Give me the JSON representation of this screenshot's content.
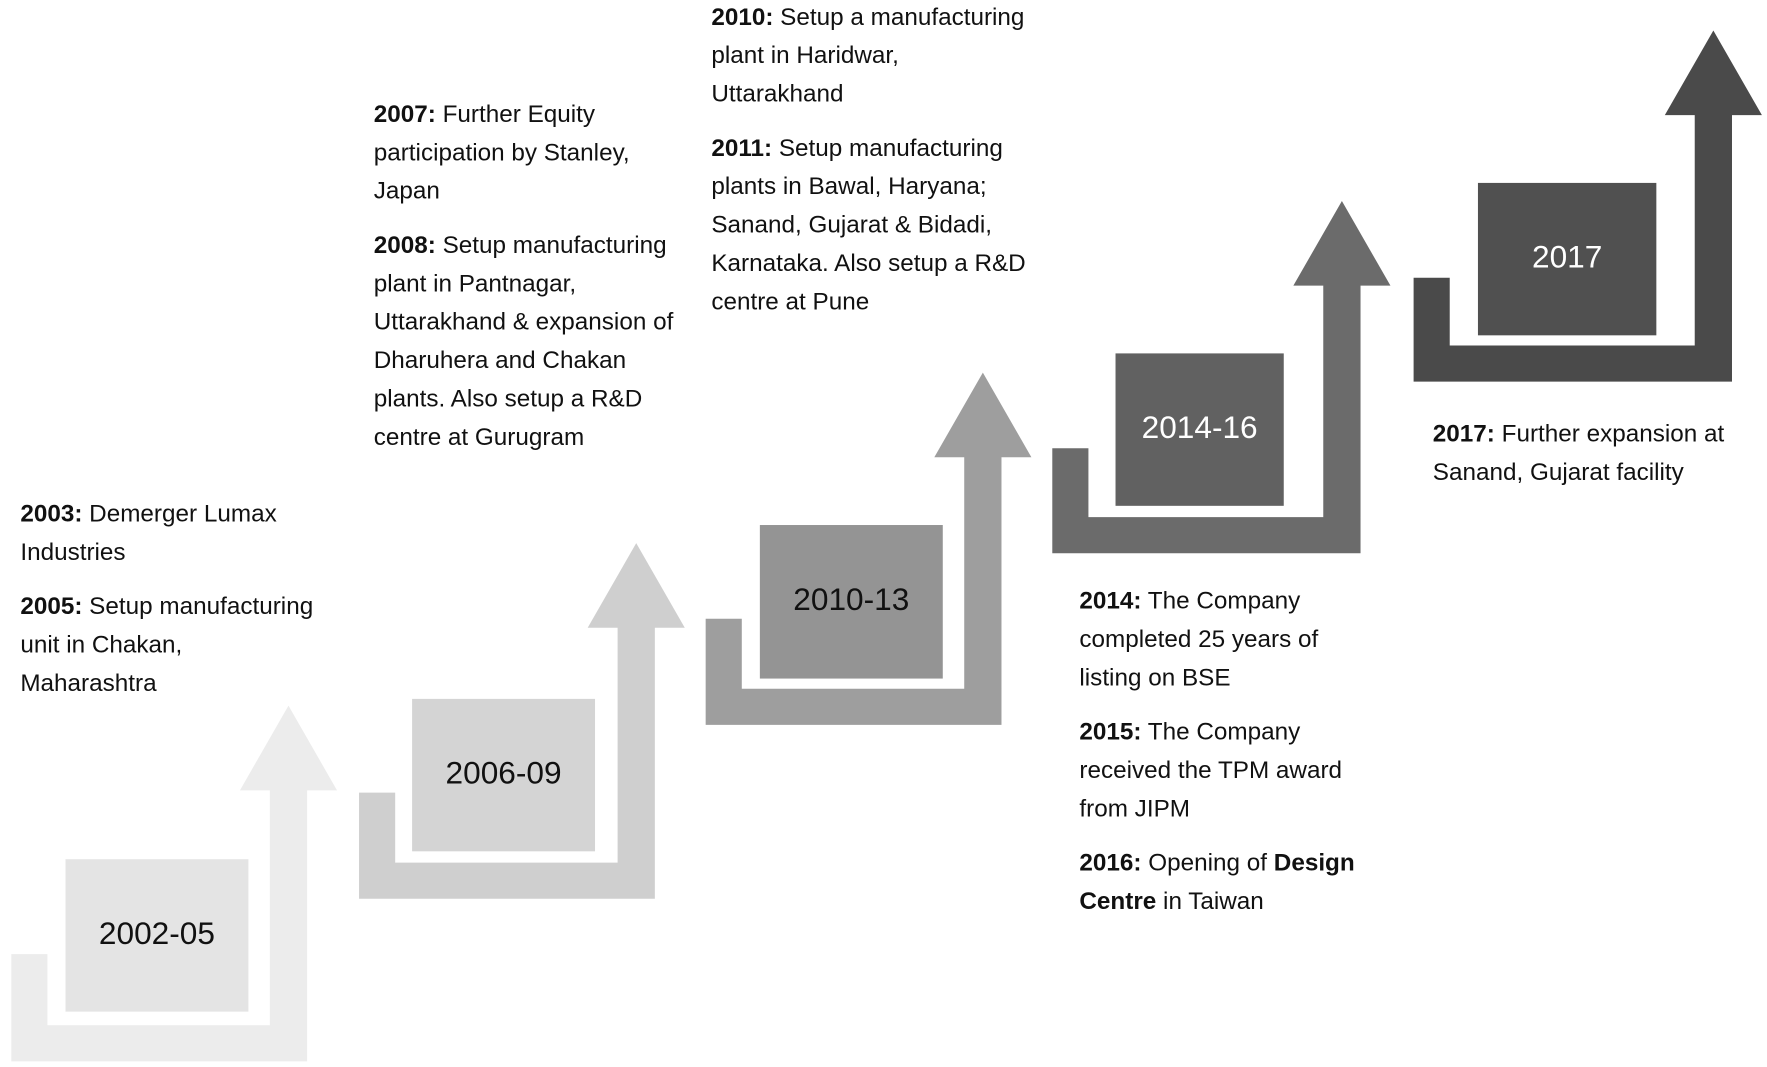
{
  "stages": [
    {
      "period": "2002-05",
      "events": [
        {
          "year": "2003:",
          "text": "Demerger Lumax Industries"
        },
        {
          "year": "2005:",
          "text": "Setup manufacturing unit in Chakan, Maharashtra"
        }
      ]
    },
    {
      "period": "2006-09",
      "events": [
        {
          "year": "2007:",
          "text": "Further Equity participation by Stanley, Japan"
        },
        {
          "year": "2008:",
          "text": "Setup manufacturing plant in Pantnagar, Uttarakhand & expansion of Dharuhera and Chakan plants. Also setup a R&D centre at Gurugram"
        }
      ]
    },
    {
      "period": "2010-13",
      "events": [
        {
          "year": "2010:",
          "text": "Setup a manufacturing plant in Haridwar, Uttarakhand"
        },
        {
          "year": "2011:",
          "text": "Setup manufacturing plants in Bawal, Haryana; Sanand, Gujarat & Bidadi, Karnataka. Also setup a R&D centre at Pune"
        }
      ]
    },
    {
      "period": "2014-16",
      "events": [
        {
          "year": "2014:",
          "text": "The Company completed 25 years of listing on BSE"
        },
        {
          "year": "2015:",
          "text": "The Company received the TPM award from JIPM"
        },
        {
          "year": "2016:",
          "text": "Opening of",
          "highlight": "Design Centre",
          "text_after": "in Taiwan"
        }
      ]
    },
    {
      "period": "2017",
      "events": [
        {
          "year": "2017:",
          "text": "Further expansion at Sanand, Gujarat facility"
        }
      ]
    }
  ]
}
